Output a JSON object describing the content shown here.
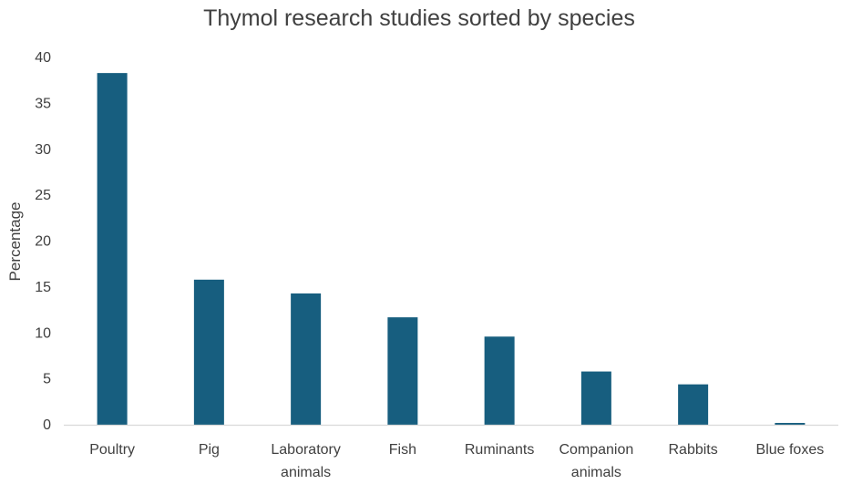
{
  "chart_data": {
    "type": "bar",
    "title": "Thymol research studies sorted by species",
    "xlabel": "",
    "ylabel": "Percentage",
    "categories": [
      [
        "Poultry"
      ],
      [
        "Pig"
      ],
      [
        "Laboratory",
        "animals"
      ],
      [
        "Fish"
      ],
      [
        "Ruminants"
      ],
      [
        "Companion",
        "animals"
      ],
      [
        "Rabbits"
      ],
      [
        "Blue foxes"
      ]
    ],
    "values": [
      38.3,
      15.8,
      14.3,
      11.7,
      9.6,
      5.8,
      4.4,
      0.2
    ],
    "ylim": [
      0,
      40
    ],
    "yticks": [
      0,
      5,
      10,
      15,
      20,
      25,
      30,
      35,
      40
    ],
    "grid": false,
    "bar_color": "#175E7F",
    "axis_color": "#D9D9D9",
    "text_color": "#404040"
  }
}
